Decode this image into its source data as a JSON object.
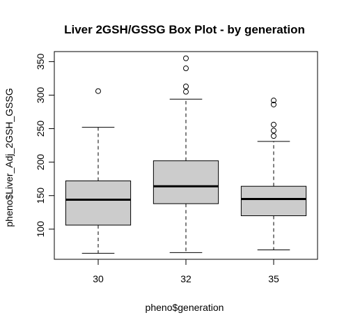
{
  "chart_data": {
    "type": "boxplot",
    "title": "Liver 2GSH/GSSG Box Plot - by generation",
    "xlabel": "pheno$generation",
    "ylabel": "pheno$Liver_Adj_2GSH_GSSG",
    "categories": [
      "30",
      "32",
      "35"
    ],
    "ylim": [
      55,
      365
    ],
    "yticks": [
      100,
      150,
      200,
      250,
      300,
      350
    ],
    "boxes": [
      {
        "category": "30",
        "whisker_low": 64,
        "q1": 106,
        "median": 144,
        "q3": 172,
        "whisker_high": 252,
        "outliers": [
          306
        ]
      },
      {
        "category": "32",
        "whisker_low": 65,
        "q1": 138,
        "median": 164,
        "q3": 202,
        "whisker_high": 294,
        "outliers": [
          305,
          313,
          340,
          355
        ]
      },
      {
        "category": "35",
        "whisker_low": 69,
        "q1": 120,
        "median": 145,
        "q3": 164,
        "whisker_high": 231,
        "outliers": [
          239,
          247,
          256,
          286,
          292
        ]
      }
    ],
    "box_fill": "#cccccc",
    "grid": false
  }
}
